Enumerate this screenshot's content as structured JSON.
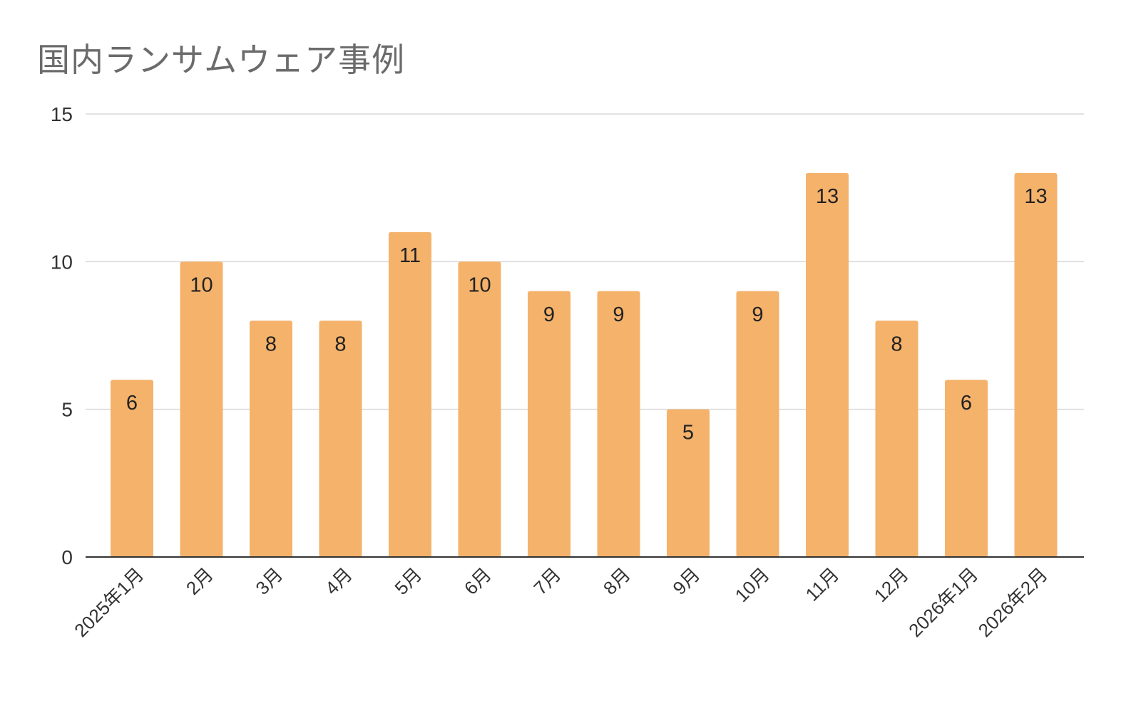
{
  "chart_data": {
    "type": "bar",
    "title": "国内ランサムウェア事例",
    "categories": [
      "2025年1月",
      "2月",
      "3月",
      "4月",
      "5月",
      "6月",
      "7月",
      "8月",
      "9月",
      "10月",
      "11月",
      "12月",
      "2026年1月",
      "2026年2月"
    ],
    "values": [
      6,
      10,
      8,
      8,
      11,
      10,
      9,
      9,
      5,
      9,
      13,
      8,
      6,
      13
    ],
    "ylim": [
      0,
      15
    ],
    "yticks": [
      0,
      5,
      10,
      15
    ],
    "grid": true,
    "legend": "none",
    "colors": {
      "bar": "#f4b26b",
      "grid": "#d9d9d9",
      "axis": "#333333",
      "label": "#222222"
    }
  }
}
